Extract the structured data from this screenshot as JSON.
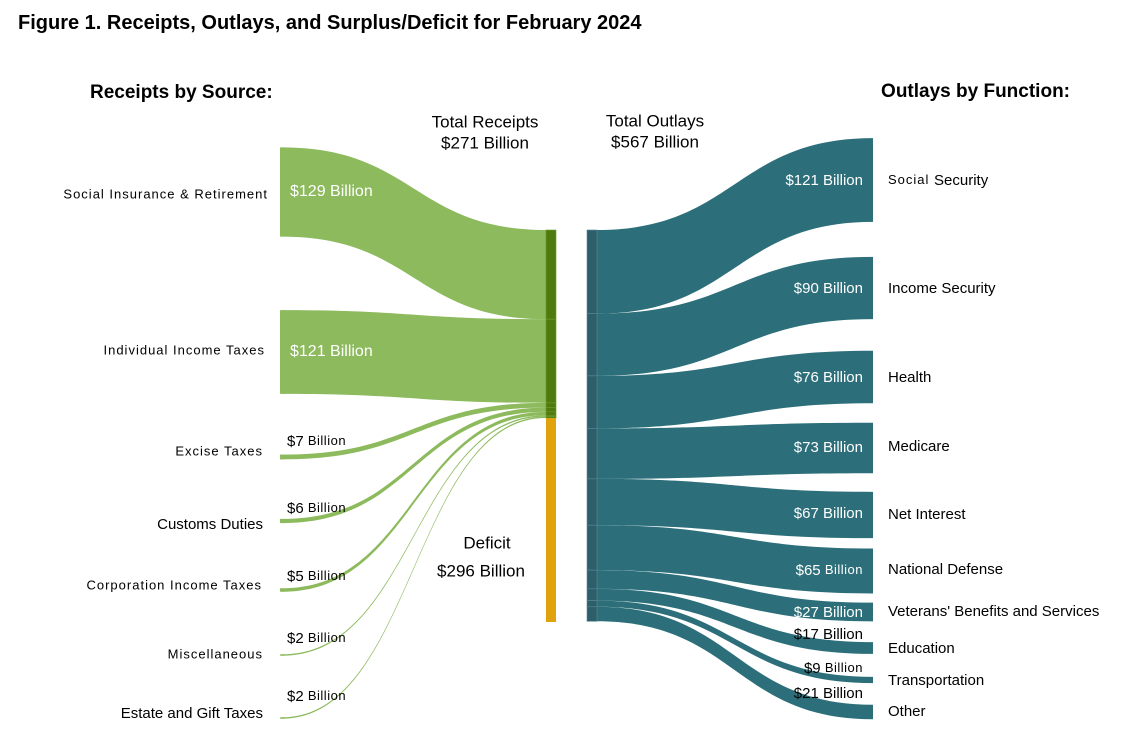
{
  "title": "Figure 1. Receipts, Outlays, and Surplus/Deficit for February 2024",
  "colors": {
    "receipt_flow": "#8cba5c",
    "receipt_node": "#4e7a0e",
    "deficit_node": "#e0a20d",
    "outlay_flow": "#2c6f7a",
    "outlay_node": "#2c5f69"
  },
  "chart_data": {
    "type": "sankey",
    "units": "Billion",
    "receipts_heading": "Receipts by Source:",
    "outlays_heading": "Outlays by Function:",
    "total_receipts": {
      "label": "Total Receipts",
      "value_label": "$271 Billion",
      "value": 271
    },
    "total_outlays": {
      "label": "Total Outlays",
      "value_label": "$567 Billion",
      "value": 567
    },
    "deficit": {
      "label": "Deficit",
      "value_label": "$296 Billion",
      "value": 296
    },
    "receipts": [
      {
        "name": "Social Insurance & Retirement",
        "value": 129,
        "value_label": "$129 Billion"
      },
      {
        "name": "Individual Income Taxes",
        "value": 121,
        "value_label": "$121 Billion"
      },
      {
        "name": "Excise Taxes",
        "value": 7,
        "value_label": "$7 Billion"
      },
      {
        "name": "Customs Duties",
        "value": 6,
        "value_label": "$6 Billion"
      },
      {
        "name": "Corporation Income Taxes",
        "value": 5,
        "value_label": "$5 Billion"
      },
      {
        "name": "Miscellaneous",
        "value": 2,
        "value_label": "$2 Billion"
      },
      {
        "name": "Estate and Gift Taxes",
        "value": 2,
        "value_label": "$2 Billion"
      }
    ],
    "outlays": [
      {
        "name": "Social Security",
        "value": 121,
        "value_label": "$121 Billion"
      },
      {
        "name": "Income Security",
        "value": 90,
        "value_label": "$90 Billion"
      },
      {
        "name": "Health",
        "value": 76,
        "value_label": "$76 Billion"
      },
      {
        "name": "Medicare",
        "value": 73,
        "value_label": "$73 Billion"
      },
      {
        "name": "Net Interest",
        "value": 67,
        "value_label": "$67 Billion"
      },
      {
        "name": "National Defense",
        "value": 65,
        "value_label": "$65 Billion"
      },
      {
        "name": "Veterans' Benefits and Services",
        "value": 27,
        "value_label": "$27 Billion"
      },
      {
        "name": "Education",
        "value": 17,
        "value_label": "$17 Billion"
      },
      {
        "name": "Transportation",
        "value": 9,
        "value_label": "$9 Billion"
      },
      {
        "name": "Other",
        "value": 21,
        "value_label": "$21 Billion"
      }
    ]
  }
}
